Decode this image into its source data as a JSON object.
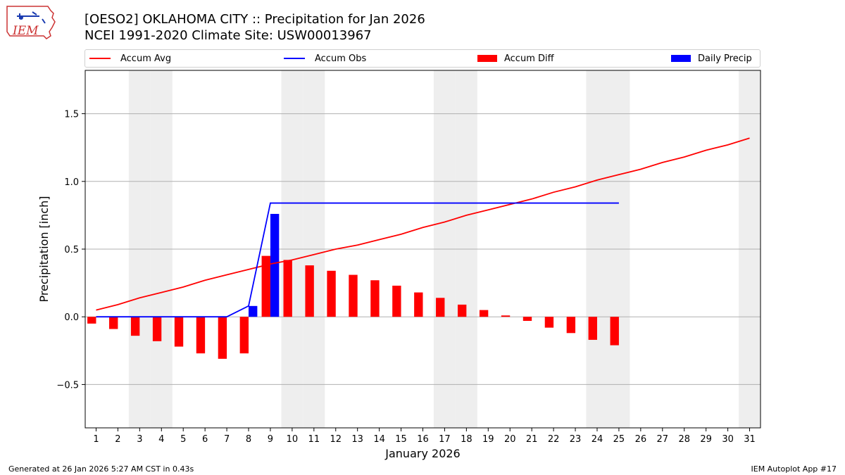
{
  "header": {
    "logo_text": "IEM",
    "title_line1": "[OESO2] OKLAHOMA CITY :: Precipitation for Jan 2026",
    "title_line2": "NCEI 1991-2020 Climate Site: USW00013967"
  },
  "legend": {
    "accum_avg": "Accum Avg",
    "accum_obs": "Accum Obs",
    "accum_diff": "Accum Diff",
    "daily_precip": "Daily Precip"
  },
  "colors": {
    "avg": "#ff0000",
    "obs": "#0000ff",
    "diff": "#ff0000",
    "daily": "#0000ff",
    "weekend_band": "#eeeeee",
    "grid": "#b0b0b0"
  },
  "footer": {
    "generated": "Generated at 26 Jan 2026 5:27 AM CST in 0.43s",
    "app": "IEM Autoplot App #17"
  },
  "chart_data": {
    "type": "bar",
    "xlabel": "January 2026",
    "ylabel": "Precipitation [inch]",
    "xlim": [
      0.5,
      31.5
    ],
    "ylim": [
      -0.82,
      1.82
    ],
    "yticks": [
      -0.5,
      0.0,
      0.5,
      1.0,
      1.5
    ],
    "ytick_labels": [
      "−0.5",
      "0.0",
      "0.5",
      "1.0",
      "1.5"
    ],
    "days": [
      1,
      2,
      3,
      4,
      5,
      6,
      7,
      8,
      9,
      10,
      11,
      12,
      13,
      14,
      15,
      16,
      17,
      18,
      19,
      20,
      21,
      22,
      23,
      24,
      25,
      26,
      27,
      28,
      29,
      30,
      31
    ],
    "weekend_days": [
      3,
      4,
      10,
      11,
      17,
      18,
      24,
      25,
      31
    ],
    "series": [
      {
        "name": "Accum Avg",
        "type": "line",
        "values": [
          0.05,
          0.09,
          0.14,
          0.18,
          0.22,
          0.27,
          0.31,
          0.35,
          0.39,
          0.42,
          0.46,
          0.5,
          0.53,
          0.57,
          0.61,
          0.66,
          0.7,
          0.75,
          0.79,
          0.83,
          0.87,
          0.92,
          0.96,
          1.01,
          1.05,
          1.09,
          1.14,
          1.18,
          1.23,
          1.27,
          1.32
        ]
      },
      {
        "name": "Accum Obs",
        "type": "line",
        "values": [
          0,
          0,
          0,
          0,
          0,
          0,
          0,
          0.08,
          0.84,
          0.84,
          0.84,
          0.84,
          0.84,
          0.84,
          0.84,
          0.84,
          0.84,
          0.84,
          0.84,
          0.84,
          0.84,
          0.84,
          0.84,
          0.84,
          0.84
        ]
      },
      {
        "name": "Accum Diff",
        "type": "bar",
        "values": [
          -0.05,
          -0.09,
          -0.14,
          -0.18,
          -0.22,
          -0.27,
          -0.31,
          -0.27,
          0.45,
          0.42,
          0.38,
          0.34,
          0.31,
          0.27,
          0.23,
          0.18,
          0.14,
          0.09,
          0.05,
          0.01,
          -0.03,
          -0.08,
          -0.12,
          -0.17,
          -0.21
        ]
      },
      {
        "name": "Daily Precip",
        "type": "bar",
        "values": [
          0,
          0,
          0,
          0,
          0,
          0,
          0,
          0.08,
          0.76,
          0,
          0,
          0,
          0,
          0,
          0,
          0,
          0,
          0,
          0,
          0,
          0,
          0,
          0,
          0,
          0
        ]
      }
    ]
  }
}
